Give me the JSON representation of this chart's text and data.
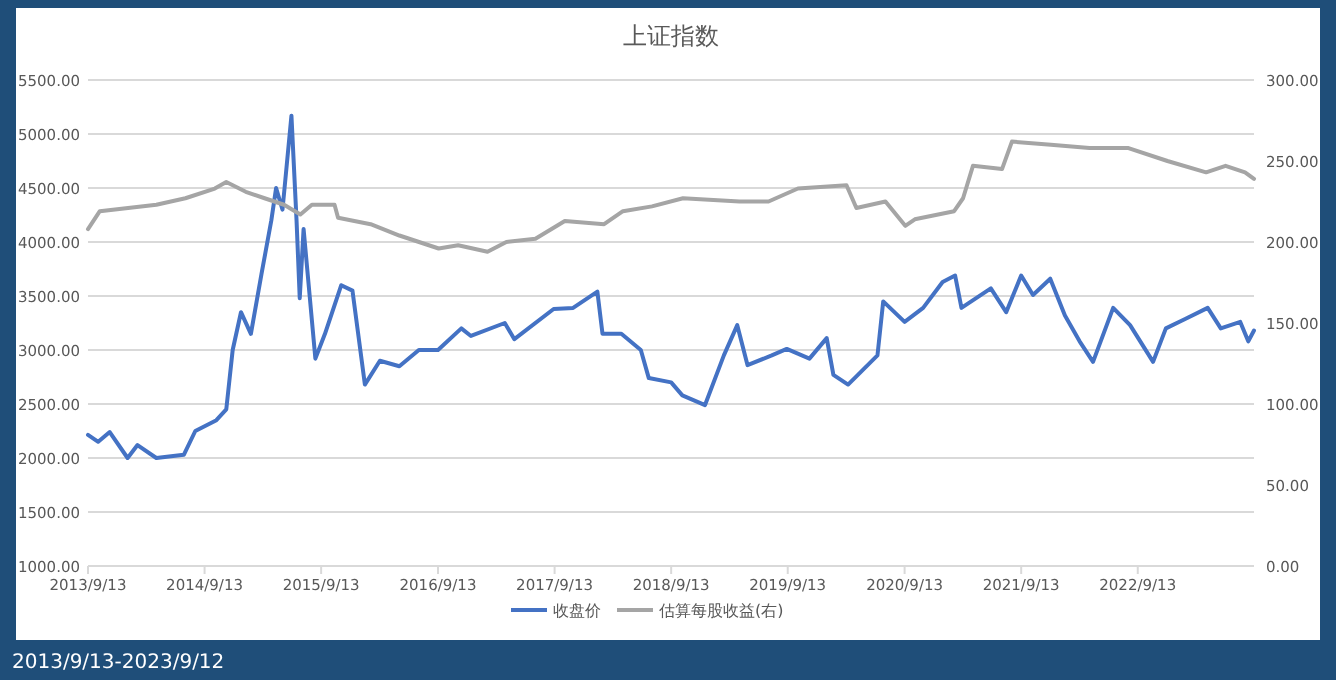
{
  "chart_data": {
    "type": "line",
    "title": "上证指数",
    "annotations": [
      "2013/9/13-2023/9/12"
    ],
    "xlim": [
      "2013-09-13",
      "2023-09-12"
    ],
    "xticks": [
      {
        "value": "2013-09-13",
        "label": "2013/9/13"
      },
      {
        "value": "2014-09-13",
        "label": "2014/9/13"
      },
      {
        "value": "2015-09-13",
        "label": "2015/9/13"
      },
      {
        "value": "2016-09-13",
        "label": "2016/9/13"
      },
      {
        "value": "2017-09-13",
        "label": "2017/9/13"
      },
      {
        "value": "2018-09-13",
        "label": "2018/9/13"
      },
      {
        "value": "2019-09-13",
        "label": "2019/9/13"
      },
      {
        "value": "2020-09-13",
        "label": "2020/9/13"
      },
      {
        "value": "2021-09-13",
        "label": "2021/9/13"
      },
      {
        "value": "2022-09-13",
        "label": "2022/9/13"
      }
    ],
    "ylim": [
      1000,
      5500
    ],
    "yticks": [
      {
        "value": 1000,
        "label": "1000.00"
      },
      {
        "value": 1500,
        "label": "1500.00"
      },
      {
        "value": 2000,
        "label": "2000.00"
      },
      {
        "value": 2500,
        "label": "2500.00"
      },
      {
        "value": 3000,
        "label": "3000.00"
      },
      {
        "value": 3500,
        "label": "3500.00"
      },
      {
        "value": 4000,
        "label": "4000.00"
      },
      {
        "value": 4500,
        "label": "4500.00"
      },
      {
        "value": 5000,
        "label": "5000.00"
      },
      {
        "value": 5500,
        "label": "5500.00"
      }
    ],
    "y2lim": [
      0,
      300
    ],
    "y2ticks": [
      {
        "value": 0,
        "label": "0.00"
      },
      {
        "value": 50,
        "label": "50.00"
      },
      {
        "value": 100,
        "label": "100.00"
      },
      {
        "value": 150,
        "label": "150.00"
      },
      {
        "value": 200,
        "label": "200.00"
      },
      {
        "value": 250,
        "label": "250.00"
      },
      {
        "value": 300,
        "label": "300.00"
      }
    ],
    "grid": "y",
    "legend": "bottom",
    "series": [
      {
        "name": "收盘价",
        "color": "#4472c4",
        "x": [
          "2013-09-13",
          "2013-10-15",
          "2013-11-20",
          "2014-01-15",
          "2014-02-15",
          "2014-04-15",
          "2014-07-10",
          "2014-08-15",
          "2014-10-20",
          "2014-11-20",
          "2014-12-10",
          "2015-01-05",
          "2015-02-05",
          "2015-03-10",
          "2015-04-10",
          "2015-04-25",
          "2015-05-15",
          "2015-06-12",
          "2015-06-28",
          "2015-07-08",
          "2015-07-20",
          "2015-08-26",
          "2015-09-25",
          "2015-11-15",
          "2015-12-20",
          "2016-01-28",
          "2016-03-15",
          "2016-05-15",
          "2016-07-15",
          "2016-09-13",
          "2016-11-25",
          "2016-12-25",
          "2017-04-10",
          "2017-05-10",
          "2017-09-10",
          "2017-11-10",
          "2018-01-25",
          "2018-02-10",
          "2018-04-10",
          "2018-06-10",
          "2018-07-05",
          "2018-09-13",
          "2018-10-18",
          "2018-12-28",
          "2019-02-25",
          "2019-04-08",
          "2019-05-10",
          "2019-07-25",
          "2019-09-10",
          "2019-11-20",
          "2020-01-13",
          "2020-02-03",
          "2020-03-20",
          "2020-06-20",
          "2020-07-08",
          "2020-09-13",
          "2020-11-10",
          "2021-01-10",
          "2021-02-18",
          "2021-03-10",
          "2021-06-10",
          "2021-07-28",
          "2021-09-13",
          "2021-10-20",
          "2021-12-13",
          "2022-01-28",
          "2022-03-15",
          "2022-04-26",
          "2022-06-28",
          "2022-08-20",
          "2022-10-31",
          "2022-12-10",
          "2023-02-10",
          "2023-04-20",
          "2023-05-31",
          "2023-07-31",
          "2023-08-25",
          "2023-09-12"
        ],
        "values": [
          2215,
          2150,
          2240,
          2000,
          2120,
          2000,
          2030,
          2250,
          2350,
          2450,
          3000,
          3350,
          3150,
          3700,
          4200,
          4500,
          4300,
          5170,
          4200,
          3480,
          4120,
          2920,
          3150,
          3600,
          3550,
          2680,
          2900,
          2850,
          3000,
          3000,
          3200,
          3130,
          3250,
          3100,
          3380,
          3390,
          3540,
          3150,
          3150,
          3000,
          2740,
          2700,
          2580,
          2490,
          2950,
          3230,
          2860,
          2950,
          3010,
          2920,
          3110,
          2770,
          2680,
          2950,
          3450,
          3260,
          3390,
          3630,
          3690,
          3390,
          3570,
          3350,
          3690,
          3510,
          3660,
          3320,
          3080,
          2890,
          3390,
          3230,
          2890,
          3200,
          3290,
          3390,
          3200,
          3260,
          3080,
          3180
        ]
      },
      {
        "name": "估算每股收益(右)",
        "color": "#a5a5a5",
        "axis": "y2",
        "x": [
          "2013-09-13",
          "2013-10-20",
          "2014-04-15",
          "2014-07-15",
          "2014-10-15",
          "2014-11-20",
          "2015-01-20",
          "2015-03-20",
          "2015-05-20",
          "2015-07-10",
          "2015-08-15",
          "2015-10-25",
          "2015-11-05",
          "2016-02-15",
          "2016-05-15",
          "2016-09-15",
          "2016-11-15",
          "2017-02-15",
          "2017-04-15",
          "2017-07-15",
          "2017-10-15",
          "2018-02-15",
          "2018-04-15",
          "2018-07-15",
          "2018-10-20",
          "2019-04-15",
          "2019-07-15",
          "2019-10-15",
          "2020-03-15",
          "2020-04-15",
          "2020-07-15",
          "2020-09-15",
          "2020-10-15",
          "2021-02-15",
          "2021-03-15",
          "2021-04-15",
          "2021-07-15",
          "2021-08-15",
          "2021-12-15",
          "2022-04-15",
          "2022-08-15",
          "2022-12-15",
          "2023-04-15",
          "2023-06-15",
          "2023-08-15",
          "2023-09-12"
        ],
        "values": [
          208,
          219,
          223,
          227,
          233,
          237,
          231,
          227,
          223,
          217,
          223,
          223,
          215,
          211,
          204,
          196,
          198,
          194,
          200,
          202,
          213,
          211,
          219,
          222,
          227,
          225,
          225,
          233,
          235,
          221,
          225,
          210,
          214,
          219,
          227,
          247,
          245,
          262,
          260,
          258,
          258,
          250,
          243,
          247,
          243,
          239
        ]
      }
    ]
  }
}
